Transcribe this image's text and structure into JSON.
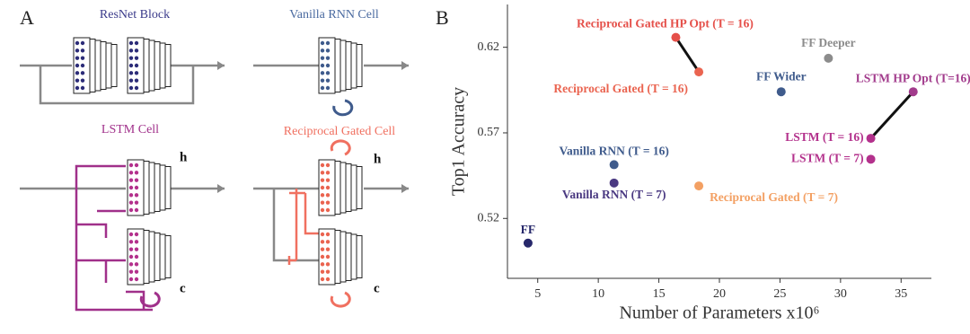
{
  "panel_a": {
    "label": "A",
    "resnet": "ResNet Block",
    "vanilla": "Vanilla RNN Cell",
    "lstm": "LSTM Cell",
    "reciprocal": "Reciprocal Gated Cell",
    "lstm_h": "h",
    "lstm_c": "c",
    "rg_h": "h",
    "rg_c": "c"
  },
  "chart_data": {
    "type": "scatter",
    "panel_label": "B",
    "x_label": "Number of Parameters x10⁶",
    "y_label": "Top1 Accuracy",
    "xlim": [
      2.5,
      37.5
    ],
    "ylim": [
      0.485,
      0.645
    ],
    "xticks": [
      5,
      10,
      15,
      20,
      25,
      30,
      35
    ],
    "yticks": [
      0.52,
      0.57,
      0.62
    ],
    "series": [
      {
        "name": "FF",
        "color": "#27286b",
        "x": [
          4.2
        ],
        "values": [
          0.5056
        ]
      },
      {
        "name": "Vanilla RNN (T = 16)",
        "color": "#3f5b8c",
        "x": [
          11.3
        ],
        "values": [
          0.5514
        ]
      },
      {
        "name": "Vanilla RNN (T = 7)",
        "color": "#4b3a82",
        "x": [
          11.3
        ],
        "values": [
          0.5407
        ]
      },
      {
        "name": "Reciprocal Gated (T = 7)",
        "color": "#f3a063",
        "x": [
          18.3
        ],
        "values": [
          0.539
        ]
      },
      {
        "name": "Reciprocal Gated (T = 16)",
        "color": "#ea6450",
        "x": [
          18.3
        ],
        "values": [
          0.6056
        ]
      },
      {
        "name": "Reciprocal Gated HP Opt (T = 16)",
        "color": "#e5504a",
        "x": [
          16.4
        ],
        "values": [
          0.6258
        ]
      },
      {
        "name": "FF Wider",
        "color": "#3f5b8c",
        "x": [
          25.1
        ],
        "values": [
          0.594
        ]
      },
      {
        "name": "FF Deeper",
        "color": "#8c8c8c",
        "x": [
          29
        ],
        "values": [
          0.6136
        ]
      },
      {
        "name": "LSTM (T = 16)",
        "color": "#b3318c",
        "x": [
          32.5
        ],
        "values": [
          0.5668
        ]
      },
      {
        "name": "LSTM (T = 7)",
        "color": "#b3318c",
        "x": [
          32.5
        ],
        "values": [
          0.5546
        ]
      },
      {
        "name": "LSTM HP Opt (T=16)",
        "color": "#a23b8c",
        "x": [
          36
        ],
        "values": [
          0.594
        ]
      }
    ]
  }
}
